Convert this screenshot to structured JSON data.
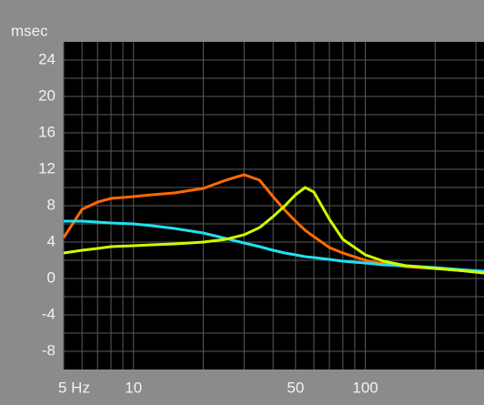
{
  "chart_data": {
    "type": "line",
    "y_label": "msec",
    "log_x": true,
    "grid": true,
    "xlim": [
      5,
      325
    ],
    "ylim": [
      -10,
      26
    ],
    "xticks": [
      {
        "value": 5,
        "label": "5 Hz"
      },
      10,
      50,
      100
    ],
    "xgrid": [
      6,
      7,
      8,
      9,
      20,
      30,
      40,
      60,
      70,
      80,
      90,
      200,
      300
    ],
    "yticks": [
      24,
      20,
      16,
      12,
      8,
      4,
      0,
      -4,
      -8
    ],
    "ygrid": [
      22,
      18,
      14,
      10,
      6,
      2,
      -2,
      -6
    ],
    "x": [
      5,
      6,
      7,
      8,
      10,
      12,
      15,
      20,
      25,
      30,
      35,
      40,
      45,
      50,
      55,
      60,
      70,
      80,
      100,
      120,
      150,
      200,
      250,
      325
    ],
    "series": [
      {
        "color": "#ff6a00",
        "values": [
          4.5,
          7.6,
          8.4,
          8.8,
          9.0,
          9.2,
          9.4,
          9.9,
          10.8,
          11.4,
          10.8,
          9.0,
          7.5,
          6.3,
          5.3,
          4.6,
          3.4,
          2.8,
          2.0,
          1.6,
          1.3,
          1.1,
          0.9,
          0.7
        ]
      },
      {
        "color": "#22e0ee",
        "values": [
          6.3,
          6.3,
          6.2,
          6.1,
          6.0,
          5.8,
          5.5,
          5.0,
          4.4,
          3.9,
          3.5,
          3.1,
          2.8,
          2.6,
          2.4,
          2.3,
          2.1,
          1.9,
          1.7,
          1.5,
          1.4,
          1.2,
          1.0,
          0.8
        ]
      },
      {
        "color": "#ccff00",
        "values": [
          2.8,
          3.1,
          3.3,
          3.5,
          3.6,
          3.7,
          3.8,
          4.0,
          4.3,
          4.8,
          5.6,
          6.8,
          8.0,
          9.2,
          10.0,
          9.5,
          6.5,
          4.3,
          2.6,
          1.9,
          1.4,
          1.1,
          0.9,
          0.6
        ]
      }
    ]
  }
}
